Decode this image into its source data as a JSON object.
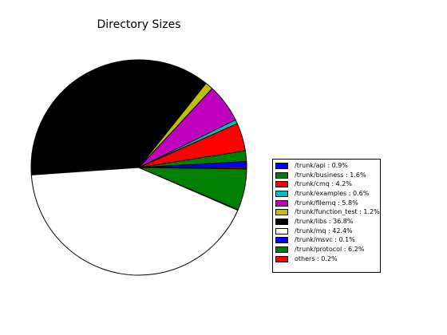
{
  "chart_data": {
    "type": "pie",
    "title": "Directory Sizes",
    "legend_position": "right",
    "slices": [
      {
        "label": "/trunk/api : 0.9%",
        "value": 0.9,
        "color": "#0000ff"
      },
      {
        "label": "/trunk/business : 1.6%",
        "value": 1.6,
        "color": "#008000"
      },
      {
        "label": "/trunk/cmq : 4.2%",
        "value": 4.2,
        "color": "#ff0000"
      },
      {
        "label": "/trunk/examples : 0.6%",
        "value": 0.6,
        "color": "#00bfbf"
      },
      {
        "label": "/trunk/filemq : 5.8%",
        "value": 5.8,
        "color": "#bf00bf"
      },
      {
        "label": "/trunk/function_test : 1.2%",
        "value": 1.2,
        "color": "#bfbf00"
      },
      {
        "label": "/trunk/libs : 36.8%",
        "value": 36.8,
        "color": "#000000"
      },
      {
        "label": "/trunk/mq : 42.4%",
        "value": 42.4,
        "color": "#ffffff"
      },
      {
        "label": "/trunk/msvc : 0.1%",
        "value": 0.1,
        "color": "#0000ff"
      },
      {
        "label": "/trunk/protocol : 6.2%",
        "value": 6.2,
        "color": "#008000"
      },
      {
        "label": "others : 0.2%",
        "value": 0.2,
        "color": "#ff0000"
      }
    ]
  }
}
